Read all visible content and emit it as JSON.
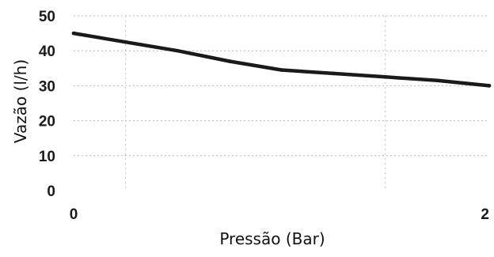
{
  "chart_data": {
    "type": "line",
    "title": "",
    "xlabel": "Pressão (Bar)",
    "ylabel": "Vazão (l/h)",
    "x_ticks": [
      "0",
      "2"
    ],
    "y_ticks": [
      "0",
      "10",
      "20",
      "30",
      "40",
      "50"
    ],
    "xlim": [
      0,
      2
    ],
    "ylim": [
      0,
      50
    ],
    "grid": true,
    "legend": "none",
    "series": [
      {
        "color": "#1a1a1a",
        "points": [
          {
            "x": 0.0,
            "y": 45
          },
          {
            "x": 0.25,
            "y": 42.5
          },
          {
            "x": 0.5,
            "y": 40
          },
          {
            "x": 0.75,
            "y": 37
          },
          {
            "x": 1.0,
            "y": 34.5
          },
          {
            "x": 1.25,
            "y": 33.5
          },
          {
            "x": 1.5,
            "y": 32.5
          },
          {
            "x": 1.75,
            "y": 31.5
          },
          {
            "x": 2.0,
            "y": 30
          }
        ]
      }
    ]
  }
}
